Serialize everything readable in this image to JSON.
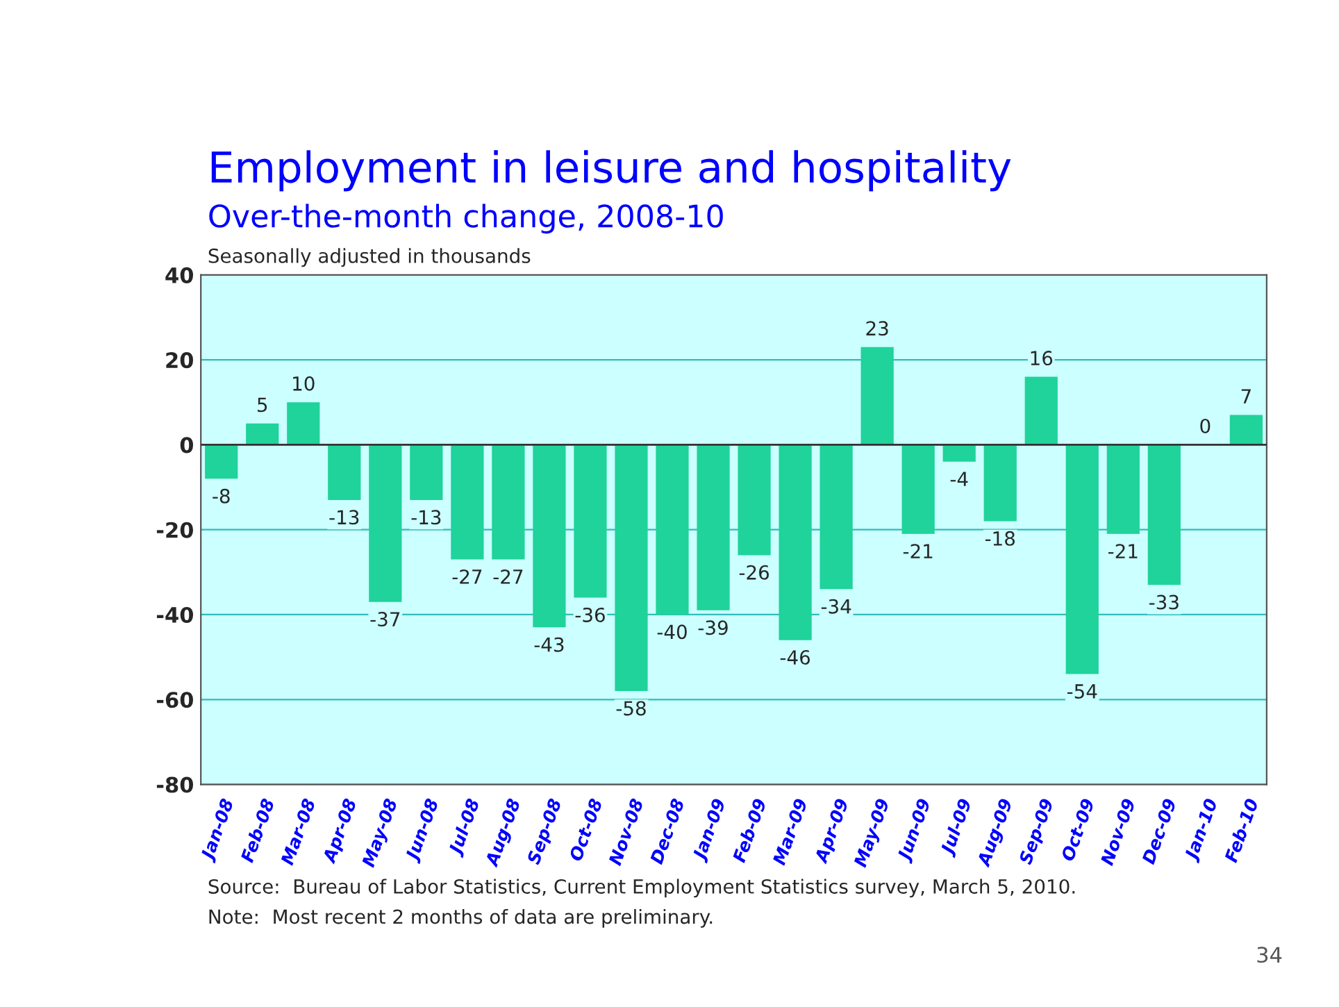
{
  "chart_data": {
    "type": "bar",
    "title": "Employment in leisure and hospitality",
    "subtitle": "Over-the-month change, 2008-10",
    "ylabel": "Seasonally adjusted in thousands",
    "categories": [
      "Jan-08",
      "Feb-08",
      "Mar-08",
      "Apr-08",
      "May-08",
      "Jun-08",
      "Jul-08",
      "Aug-08",
      "Sep-08",
      "Oct-08",
      "Nov-08",
      "Dec-08",
      "Jan-09",
      "Feb-09",
      "Mar-09",
      "Apr-09",
      "May-09",
      "Jun-09",
      "Jul-09",
      "Aug-09",
      "Sep-09",
      "Oct-09",
      "Nov-09",
      "Dec-09",
      "Jan-10",
      "Feb-10"
    ],
    "values": [
      -8,
      5,
      10,
      -13,
      -37,
      -13,
      -27,
      -27,
      -43,
      -36,
      -58,
      -40,
      -39,
      -26,
      -46,
      -34,
      23,
      -21,
      -4,
      -18,
      16,
      -54,
      -21,
      -33,
      0,
      7
    ],
    "color": "#1fd39a",
    "data_labels": true,
    "ylim": [
      -80,
      40
    ],
    "yticks": [
      -80,
      -60,
      -40,
      -20,
      0,
      20,
      40
    ],
    "grid": "y",
    "legend": false,
    "annotations": [
      "Source:  Bureau of Labor Statistics, Current Employment Statistics survey, March 5, 2010.",
      "Note:  Most recent 2 months of data are preliminary.",
      "34"
    ]
  }
}
